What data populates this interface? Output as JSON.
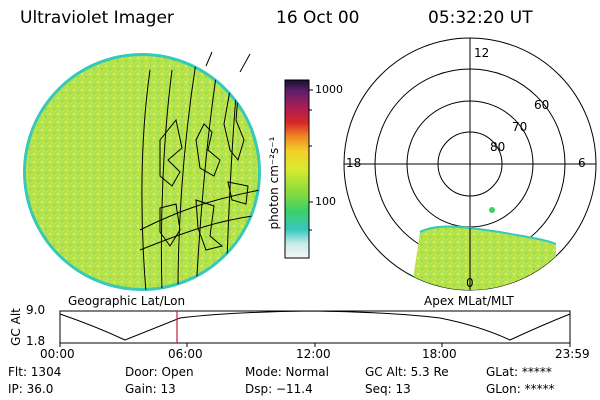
{
  "header": {
    "instrument": "Ultraviolet Imager",
    "date": "16 Oct 00",
    "time": "05:32:20 UT"
  },
  "colorbar": {
    "unit_label": "photon cm⁻²s⁻¹",
    "ticks": [
      "1000",
      "100"
    ]
  },
  "polar_plot": {
    "mlt_labels": [
      "12",
      "18",
      "6",
      "0"
    ],
    "mlat_labels": [
      "60",
      "70",
      "80"
    ]
  },
  "panel_labels": {
    "left": "Geographic Lat/Lon",
    "right": "Apex MLat/MLT"
  },
  "altitude_panel": {
    "axis_label": "GC Alt",
    "y_ticks": [
      "9.0",
      "1.8"
    ],
    "x_ticks": [
      "00:00",
      "06:00",
      "12:00",
      "18:00",
      "23:59"
    ],
    "current_time_marker": "05:32"
  },
  "status": {
    "flt": "Flt: 1304",
    "ip": "IP: 36.0",
    "door": "Door: Open",
    "gain": "Gain: 13",
    "mode": "Mode: Normal",
    "dsp": "Dsp:  −11.4",
    "gc_alt": "GC Alt: 5.3 Re",
    "seq": "Seq: 13",
    "glat": "GLat: *****",
    "glon": "GLon: *****"
  },
  "colors": {
    "disk_main": "#b6e34a",
    "disk_highlight": "#e6ee5a",
    "disk_edge": "#36c9b8",
    "marker": "#c0203a"
  }
}
